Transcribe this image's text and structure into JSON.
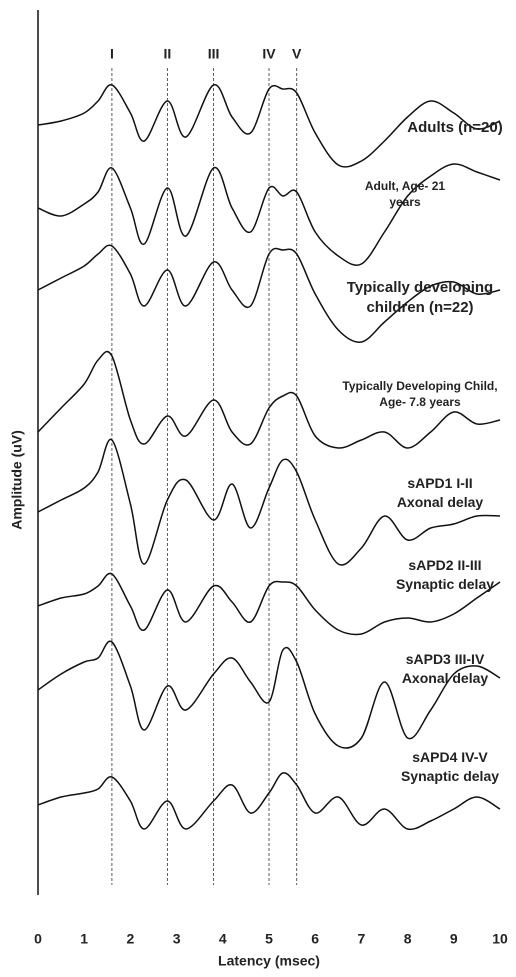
{
  "chart_data": {
    "type": "line",
    "x_label": "Latency (msec)",
    "y_label": "Amplitude (uV)",
    "xlim": [
      0,
      10
    ],
    "xticks": [
      0,
      1,
      2,
      3,
      4,
      5,
      6,
      7,
      8,
      9,
      10
    ],
    "peaks": [
      {
        "label": "I",
        "x": 1.6
      },
      {
        "label": "II",
        "x": 2.8
      },
      {
        "label": "III",
        "x": 3.8
      },
      {
        "label": "IV",
        "x": 5.0
      },
      {
        "label": "V",
        "x": 5.6
      }
    ],
    "x": [
      0,
      0.5,
      1,
      1.3,
      1.6,
      2,
      2.3,
      2.8,
      3.2,
      3.8,
      4.2,
      4.6,
      5,
      5.3,
      5.6,
      6,
      6.5,
      7,
      7.5,
      8,
      8.5,
      9,
      9.5,
      10
    ],
    "series": [
      {
        "name": "Adults (n=20)",
        "color": "#111111",
        "values": [
          0,
          0.1,
          0.3,
          0.6,
          1.0,
          0.3,
          -0.4,
          0.6,
          -0.3,
          1.0,
          0.2,
          -0.2,
          0.9,
          0.9,
          0.8,
          -0.2,
          -1.0,
          -0.9,
          -0.4,
          0.2,
          0.6,
          0.3,
          -0.1,
          0.1
        ]
      },
      {
        "name": "Adult, Age- 21 years",
        "color": "#111111",
        "values": [
          0,
          -0.2,
          0.1,
          0.4,
          1.0,
          0.0,
          -0.9,
          0.5,
          -0.7,
          1.0,
          0.0,
          -0.6,
          0.5,
          0.3,
          0.4,
          -0.6,
          -1.2,
          -1.4,
          -0.6,
          0.3,
          0.8,
          1.1,
          0.9,
          0.7
        ]
      },
      {
        "name": "Typically developing children (n=22)",
        "color": "#111111",
        "values": [
          0,
          0.3,
          0.6,
          0.9,
          1.1,
          0.4,
          -0.4,
          0.5,
          -0.4,
          0.7,
          0.0,
          -0.4,
          0.9,
          1.0,
          0.9,
          -0.1,
          -1.0,
          -1.3,
          -0.8,
          -0.3,
          0.1,
          0.2,
          -0.1,
          0.0
        ]
      },
      {
        "name": "Typically Developing Child, Age- 7.8 years",
        "color": "#111111",
        "values": [
          0,
          0.6,
          1.2,
          1.8,
          1.9,
          0.3,
          -0.3,
          0.4,
          -0.1,
          0.8,
          0.0,
          -0.3,
          0.6,
          0.9,
          0.9,
          -0.1,
          -0.4,
          -0.2,
          0.0,
          -0.4,
          0.0,
          0.5,
          0.2,
          0.3
        ]
      },
      {
        "name": "sAPD1 I-II Axonal delay",
        "color": "#111111",
        "values": [
          0,
          0.3,
          0.6,
          1.0,
          1.8,
          0.2,
          -1.3,
          0.3,
          0.8,
          -0.2,
          0.7,
          -0.4,
          0.6,
          1.3,
          1.0,
          -0.2,
          -1.3,
          -0.9,
          -0.1,
          -0.7,
          -0.4,
          -0.3,
          -0.1,
          -0.1
        ]
      },
      {
        "name": "sAPD2 II-III Synaptic delay",
        "color": "#111111",
        "values": [
          0,
          0.2,
          0.3,
          0.5,
          0.8,
          0.0,
          -0.6,
          0.4,
          -0.4,
          0.5,
          0.1,
          -0.4,
          0.5,
          0.6,
          0.5,
          -0.1,
          -0.6,
          -0.7,
          -0.4,
          -0.3,
          -0.4,
          -0.2,
          0.2,
          0.6
        ]
      },
      {
        "name": "sAPD3 III-IV Axonal delay",
        "color": "#111111",
        "values": [
          0,
          0.4,
          0.7,
          0.8,
          1.2,
          0.1,
          -1.0,
          0.1,
          -0.5,
          0.4,
          0.8,
          0.2,
          -0.3,
          1.0,
          0.7,
          -0.6,
          -1.4,
          -1.2,
          0.2,
          -1.2,
          -0.5,
          0.4,
          0.6,
          0.3
        ]
      },
      {
        "name": "sAPD4 IV-V Synaptic delay",
        "color": "#111111",
        "values": [
          0,
          0.2,
          0.3,
          0.4,
          0.7,
          0.1,
          -0.6,
          0.1,
          -0.6,
          0.1,
          0.5,
          -0.2,
          0.3,
          0.8,
          0.5,
          -0.2,
          0.2,
          -0.5,
          -0.1,
          -0.6,
          -0.4,
          -0.1,
          0.2,
          -0.1
        ]
      }
    ]
  }
}
